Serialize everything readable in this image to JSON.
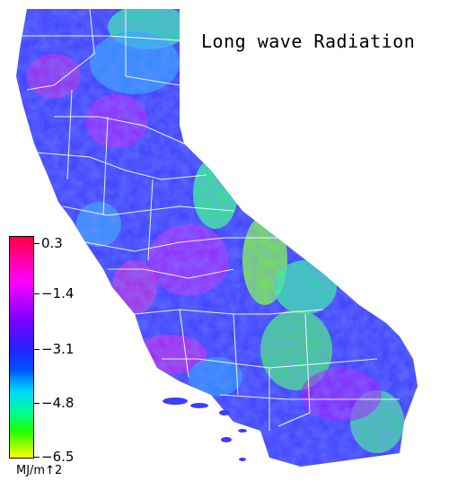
{
  "title": "Long wave Radiation",
  "legend": {
    "ticks": [
      "0.3",
      "−1.4",
      "−3.1",
      "−4.8",
      "−6.5"
    ],
    "unit": "MJ/m↑2",
    "colors": {
      "max": "#ff0040",
      "high": "#ff00ff",
      "mid_high": "#7a00ff",
      "mid": "#0050ff",
      "mid_low": "#00d8ff",
      "low": "#20ff00",
      "min": "#ffff00"
    }
  }
}
